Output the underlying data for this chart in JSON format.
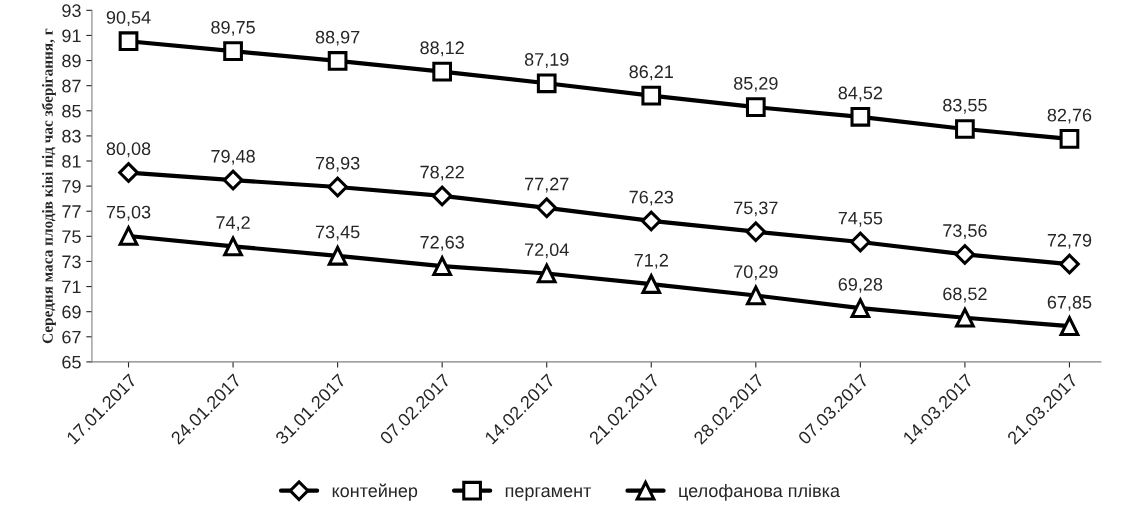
{
  "chart_data": {
    "type": "line",
    "ylabel": "Середня маса плодів ківі під час зберігання, г",
    "categories": [
      "17.01.2017",
      "24.01.2017",
      "31.01.2017",
      "07.02.2017",
      "14.02.2017",
      "21.02.2017",
      "28.02.2017",
      "07.03.2017",
      "14.03.2017",
      "21.03.2017"
    ],
    "series": [
      {
        "name": "контейнер",
        "color": "#000000",
        "marker": "diamond",
        "values": [
          80.08,
          79.48,
          78.93,
          78.22,
          77.27,
          76.23,
          75.37,
          74.55,
          73.56,
          72.79
        ],
        "value_labels": [
          "80,08",
          "79,48",
          "78,93",
          "78,22",
          "77,27",
          "76,23",
          "75,37",
          "74,55",
          "73,56",
          "72,79"
        ]
      },
      {
        "name": "пергамент",
        "color": "#000000",
        "marker": "square",
        "values": [
          90.54,
          89.75,
          88.97,
          88.12,
          87.19,
          86.21,
          85.29,
          84.52,
          83.55,
          82.76
        ],
        "value_labels": [
          "90,54",
          "89,75",
          "88,97",
          "88,12",
          "87,19",
          "86,21",
          "85,29",
          "84,52",
          "83,55",
          "82,76"
        ]
      },
      {
        "name": "целофанова плівка",
        "color": "#000000",
        "marker": "triangle",
        "values": [
          75.03,
          74.2,
          73.45,
          72.63,
          72.04,
          71.2,
          70.29,
          69.28,
          68.52,
          67.85
        ],
        "value_labels": [
          "75,03",
          "74,2",
          "73,45",
          "72,63",
          "72,04",
          "71,2",
          "70,29",
          "69,28",
          "68,52",
          "67,85"
        ]
      }
    ],
    "ylim": [
      65,
      93
    ],
    "yticks": [
      65,
      67,
      69,
      71,
      73,
      75,
      77,
      79,
      81,
      83,
      85,
      87,
      89,
      91,
      93
    ],
    "grid": false,
    "legend": "bottom",
    "line_style": "solid"
  }
}
